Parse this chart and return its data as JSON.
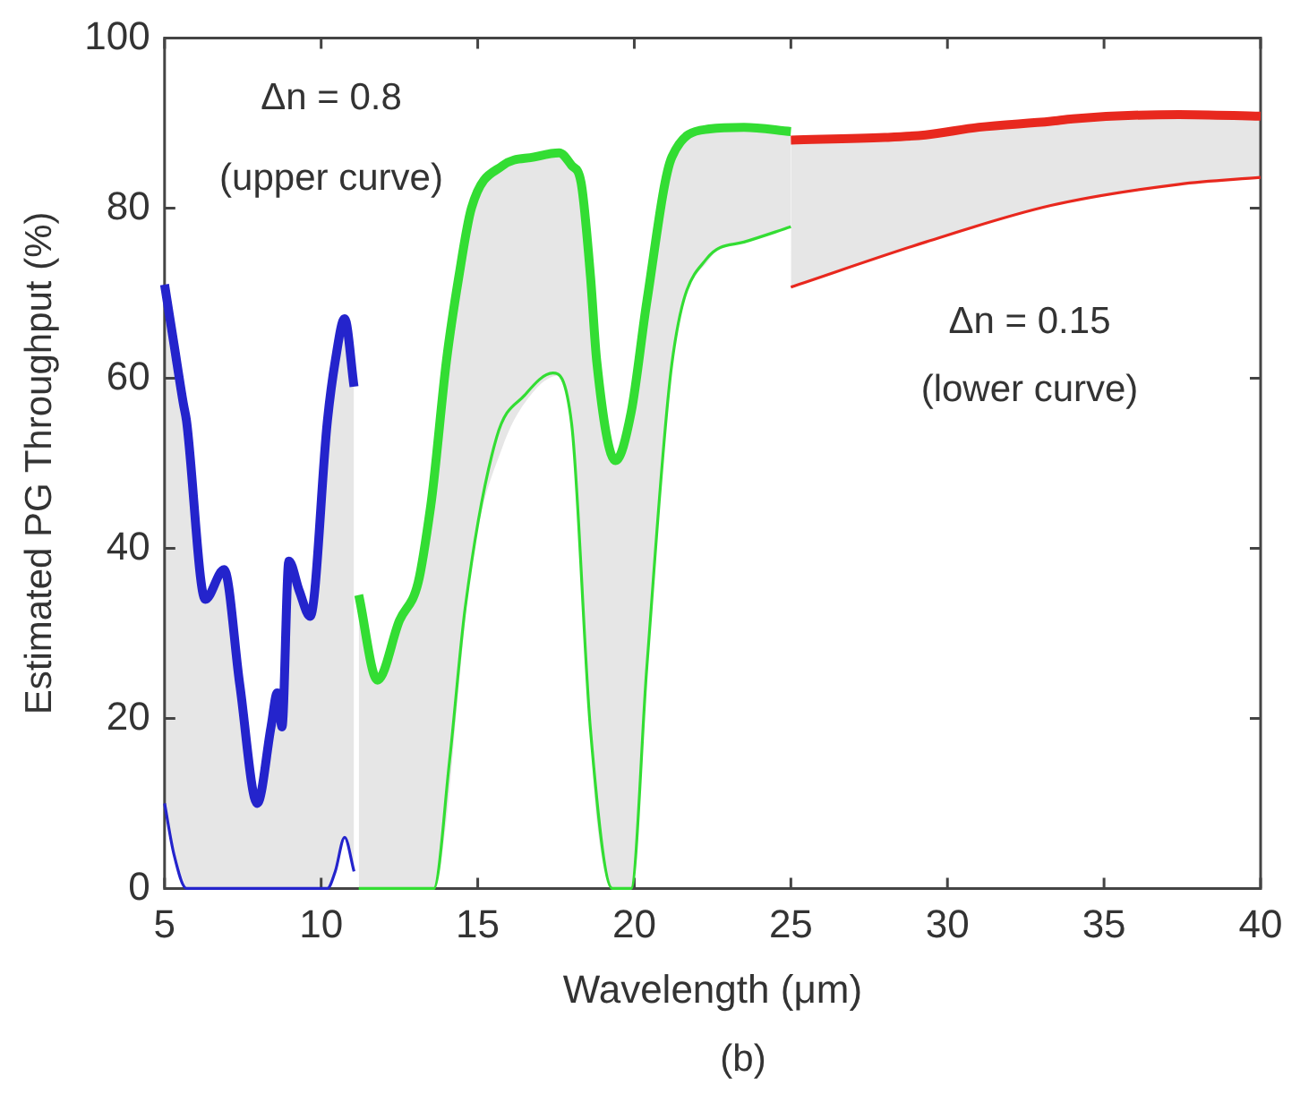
{
  "chart_data": {
    "type": "line",
    "xlabel": "Wavelength (μm)",
    "ylabel": "Estimated PG Throughput (%)",
    "xlim": [
      5,
      40
    ],
    "xticks": [
      5,
      10,
      15,
      20,
      25,
      30,
      35,
      40
    ],
    "ylim": [
      0,
      100
    ],
    "yticks": [
      0,
      20,
      40,
      60,
      80,
      100
    ],
    "grid": false,
    "legend": false,
    "marker": "none",
    "line_style": "solid",
    "annotations": [
      "Δn = 0.8",
      "(upper curve)",
      "Δn = 0.15",
      "(lower curve)",
      "(b)"
    ],
    "series": [
      {
        "color": "#2424cc",
        "x": [
          5,
          5.3,
          5.6,
          5.7,
          6.3,
          6.9,
          7.4,
          7.96,
          8.4,
          8.6,
          8.75,
          8.97,
          9.3,
          9.65,
          10.2,
          10.45,
          10.75,
          11.05
        ],
        "values": [
          71,
          64,
          57,
          55,
          34,
          37.5,
          24,
          10,
          19,
          23,
          19,
          38.5,
          35,
          32,
          55,
          62,
          67,
          59
        ],
        "lower": [
          10,
          4,
          1,
          0,
          0,
          0,
          0,
          0,
          0,
          0,
          0,
          0,
          0,
          0,
          0,
          2,
          6,
          2
        ],
        "upper": [
          71,
          64,
          57,
          55,
          34,
          37.5,
          24,
          10,
          19,
          23,
          19,
          38.5,
          35,
          32,
          55,
          62,
          67,
          59
        ]
      },
      {
        "color": "#2424cc",
        "x": [
          5,
          5.3,
          5.7,
          6.5,
          10.2,
          10.45,
          10.75,
          11.05
        ],
        "values": [
          10,
          4,
          0,
          0,
          0,
          2,
          6,
          2
        ]
      },
      {
        "color": "#33dd33",
        "x": [
          11.2,
          11.8,
          12.5,
          13.1,
          13.5,
          13.6,
          14.0,
          14.4,
          14.8,
          15.8,
          16.8,
          17.6,
          18.0,
          18.3,
          18.6,
          18.8,
          19.4,
          19.9,
          20.4,
          21.2,
          22.4,
          23.5,
          25
        ],
        "values": [
          34.5,
          24.5,
          31.5,
          36,
          45,
          48,
          62,
          72,
          80,
          85,
          86,
          86.5,
          85,
          83,
          72,
          62,
          50.3,
          56,
          69,
          86,
          89.3,
          89.5,
          89
        ],
        "lower": [
          0,
          0,
          0,
          0,
          0,
          0,
          8,
          24,
          38,
          52,
          58.5,
          60.3,
          54.6,
          38,
          18.7,
          8,
          0,
          0,
          26,
          61.7,
          74,
          76,
          77.8
        ],
        "upper": [
          34.5,
          24.5,
          31.5,
          36,
          45,
          48,
          62,
          72,
          80,
          85,
          86,
          86.5,
          85,
          83,
          72,
          62,
          50.3,
          56,
          69,
          86,
          89.3,
          89.5,
          89
        ]
      },
      {
        "color": "#33dd33",
        "x": [
          11.2,
          13.6,
          14.1,
          14.6,
          15.6,
          16.5,
          17.4,
          18.0,
          18.6,
          19.3,
          19.9,
          20.4,
          21.2,
          22.3,
          23.5,
          25
        ],
        "values": [
          0,
          0,
          15,
          33,
          53,
          58,
          60.6,
          54.6,
          18.7,
          0,
          0,
          26,
          61.7,
          74,
          76,
          77.8
        ]
      },
      {
        "color": "#e8281e",
        "x": [
          25,
          28,
          29.3,
          31,
          33.3,
          34,
          37.4,
          40
        ],
        "values": [
          88,
          88.3,
          88.6,
          89.5,
          90.2,
          90.5,
          91,
          90.8
        ],
        "lower": [
          70.7,
          74.5,
          76,
          78,
          80.3,
          80.9,
          82.8,
          83.6
        ],
        "upper": [
          88,
          88.3,
          88.6,
          89.5,
          90.2,
          90.5,
          91,
          90.8
        ]
      },
      {
        "color": "#e8281e",
        "x": [
          25,
          29.3,
          33.3,
          37.4,
          40
        ],
        "values": [
          70.7,
          76,
          80.3,
          82.8,
          83.6
        ]
      }
    ]
  }
}
